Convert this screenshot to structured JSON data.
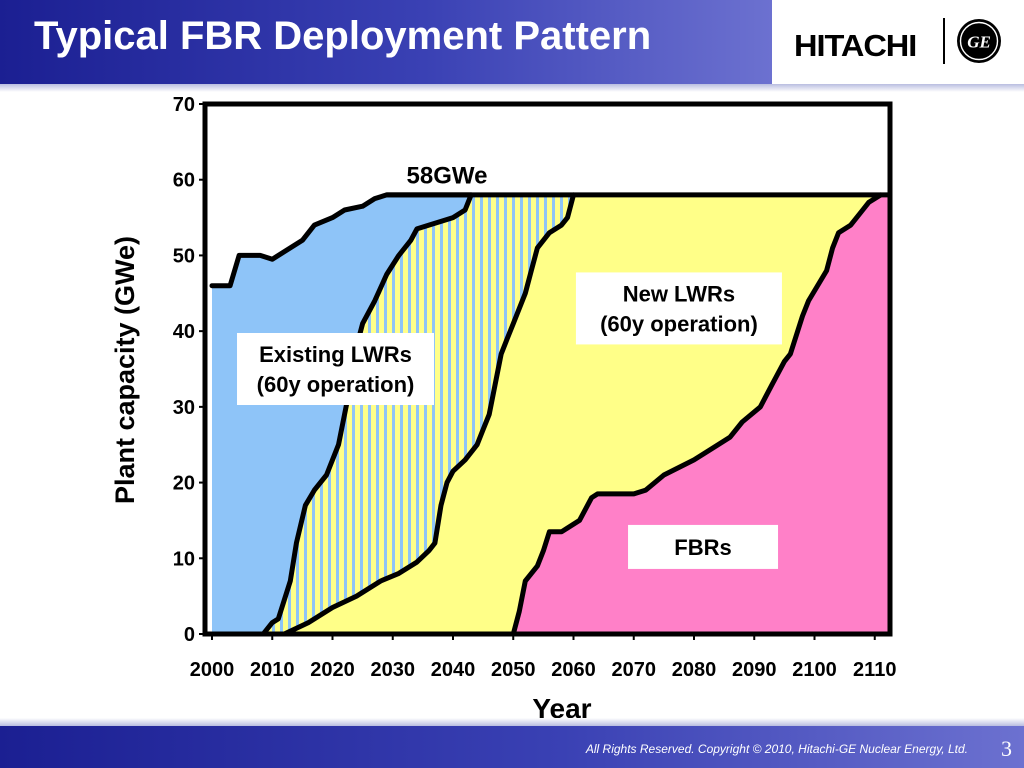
{
  "slide": {
    "title": "Typical FBR Deployment Pattern",
    "brand": "HITACHI",
    "ge_monogram": "GE",
    "copyright": "All Rights Reserved. Copyright © 2010, Hitachi-GE Nuclear Energy, Ltd.",
    "page_number": "3",
    "header_color": "#1b1f92"
  },
  "chart_data": {
    "type": "area",
    "xlabel": "Year",
    "ylabel": "Plant capacity (GWe)",
    "xlim": [
      2000,
      2113
    ],
    "ylim": [
      0,
      70
    ],
    "x_ticks": [
      2000,
      2010,
      2020,
      2030,
      2040,
      2050,
      2060,
      2070,
      2080,
      2090,
      2100,
      2110
    ],
    "y_ticks": [
      0,
      10,
      20,
      30,
      40,
      50,
      60,
      70
    ],
    "grid": false,
    "annotations": [
      {
        "text": "58GWe",
        "x": 2039,
        "y": 60
      }
    ],
    "boundaries": [
      {
        "name": "existing_top",
        "points": [
          [
            2000,
            46
          ],
          [
            2003,
            46
          ],
          [
            2004.5,
            50
          ],
          [
            2008,
            50
          ],
          [
            2010,
            49.5
          ],
          [
            2013,
            51
          ],
          [
            2015,
            52
          ],
          [
            2017,
            54
          ],
          [
            2020,
            55
          ],
          [
            2022,
            56
          ],
          [
            2025,
            56.5
          ],
          [
            2027,
            57.5
          ],
          [
            2029,
            58
          ],
          [
            2043,
            58
          ]
        ]
      },
      {
        "name": "existing_bottom",
        "points": [
          [
            2008.5,
            0
          ],
          [
            2010,
            1.5
          ],
          [
            2011,
            2
          ],
          [
            2013,
            7
          ],
          [
            2014,
            12
          ],
          [
            2015.5,
            17
          ],
          [
            2017,
            19
          ],
          [
            2019,
            21
          ],
          [
            2021,
            25
          ],
          [
            2023,
            33
          ],
          [
            2024,
            38
          ],
          [
            2025,
            41
          ],
          [
            2027,
            44
          ],
          [
            2029,
            47.5
          ],
          [
            2031,
            50
          ],
          [
            2033,
            52
          ],
          [
            2034,
            53.5
          ],
          [
            2036,
            54
          ],
          [
            2038,
            54.5
          ],
          [
            2040,
            55
          ],
          [
            2042,
            56
          ],
          [
            2043,
            58
          ]
        ]
      },
      {
        "name": "striped_bottom",
        "points": [
          [
            2012,
            0
          ],
          [
            2016,
            1.5
          ],
          [
            2020,
            3.5
          ],
          [
            2024,
            5
          ],
          [
            2028,
            7
          ],
          [
            2031,
            8
          ],
          [
            2034,
            9.5
          ],
          [
            2036,
            11
          ],
          [
            2037,
            12
          ],
          [
            2038,
            17
          ],
          [
            2039,
            20
          ],
          [
            2040,
            21.5
          ],
          [
            2042,
            23
          ],
          [
            2044,
            25
          ],
          [
            2045,
            27
          ],
          [
            2046,
            29
          ],
          [
            2047,
            33
          ],
          [
            2048,
            37
          ],
          [
            2049,
            39
          ],
          [
            2050,
            41
          ],
          [
            2052,
            45
          ],
          [
            2053,
            48
          ],
          [
            2054,
            51
          ],
          [
            2056,
            53
          ],
          [
            2058,
            54
          ],
          [
            2059,
            55
          ],
          [
            2060,
            58
          ]
        ]
      },
      {
        "name": "fbr_top",
        "points": [
          [
            2050,
            0
          ],
          [
            2051,
            3
          ],
          [
            2052,
            7
          ],
          [
            2054,
            9
          ],
          [
            2055,
            11
          ],
          [
            2056,
            13.5
          ],
          [
            2058,
            13.5
          ],
          [
            2059,
            14
          ],
          [
            2061,
            15
          ],
          [
            2063,
            18
          ],
          [
            2064,
            18.5
          ],
          [
            2070,
            18.5
          ],
          [
            2072,
            19
          ],
          [
            2075,
            21
          ],
          [
            2080,
            23
          ],
          [
            2083,
            24.5
          ],
          [
            2086,
            26
          ],
          [
            2088,
            28
          ],
          [
            2091,
            30
          ],
          [
            2093,
            33
          ],
          [
            2095,
            36
          ],
          [
            2096,
            37
          ],
          [
            2098,
            42
          ],
          [
            2099,
            44
          ],
          [
            2102,
            48
          ],
          [
            2103,
            51
          ],
          [
            2104,
            53
          ],
          [
            2106,
            54
          ],
          [
            2108,
            56
          ],
          [
            2109,
            57
          ],
          [
            2111,
            58
          ]
        ]
      }
    ],
    "series": [
      {
        "name": "Existing LWRs (60y operation)",
        "color": "#8ec4f8"
      },
      {
        "name": "New LWRs (60y operation)",
        "color": "#ffff88"
      },
      {
        "name": "FBRs",
        "color": "#ff80c8"
      }
    ],
    "stripe_colors": [
      "#ffff88",
      "#8ec4f8"
    ],
    "labels": [
      {
        "series_index": 0,
        "lines": [
          "Existing LWRs",
          "(60y operation)"
        ],
        "x": 2020.5,
        "y": 35
      },
      {
        "series_index": 1,
        "lines": [
          "New LWRs",
          "(60y operation)"
        ],
        "x": 2077.5,
        "y": 43
      },
      {
        "series_index": 2,
        "lines": [
          "FBRs"
        ],
        "x": 2081.5,
        "y": 11.5
      }
    ]
  }
}
